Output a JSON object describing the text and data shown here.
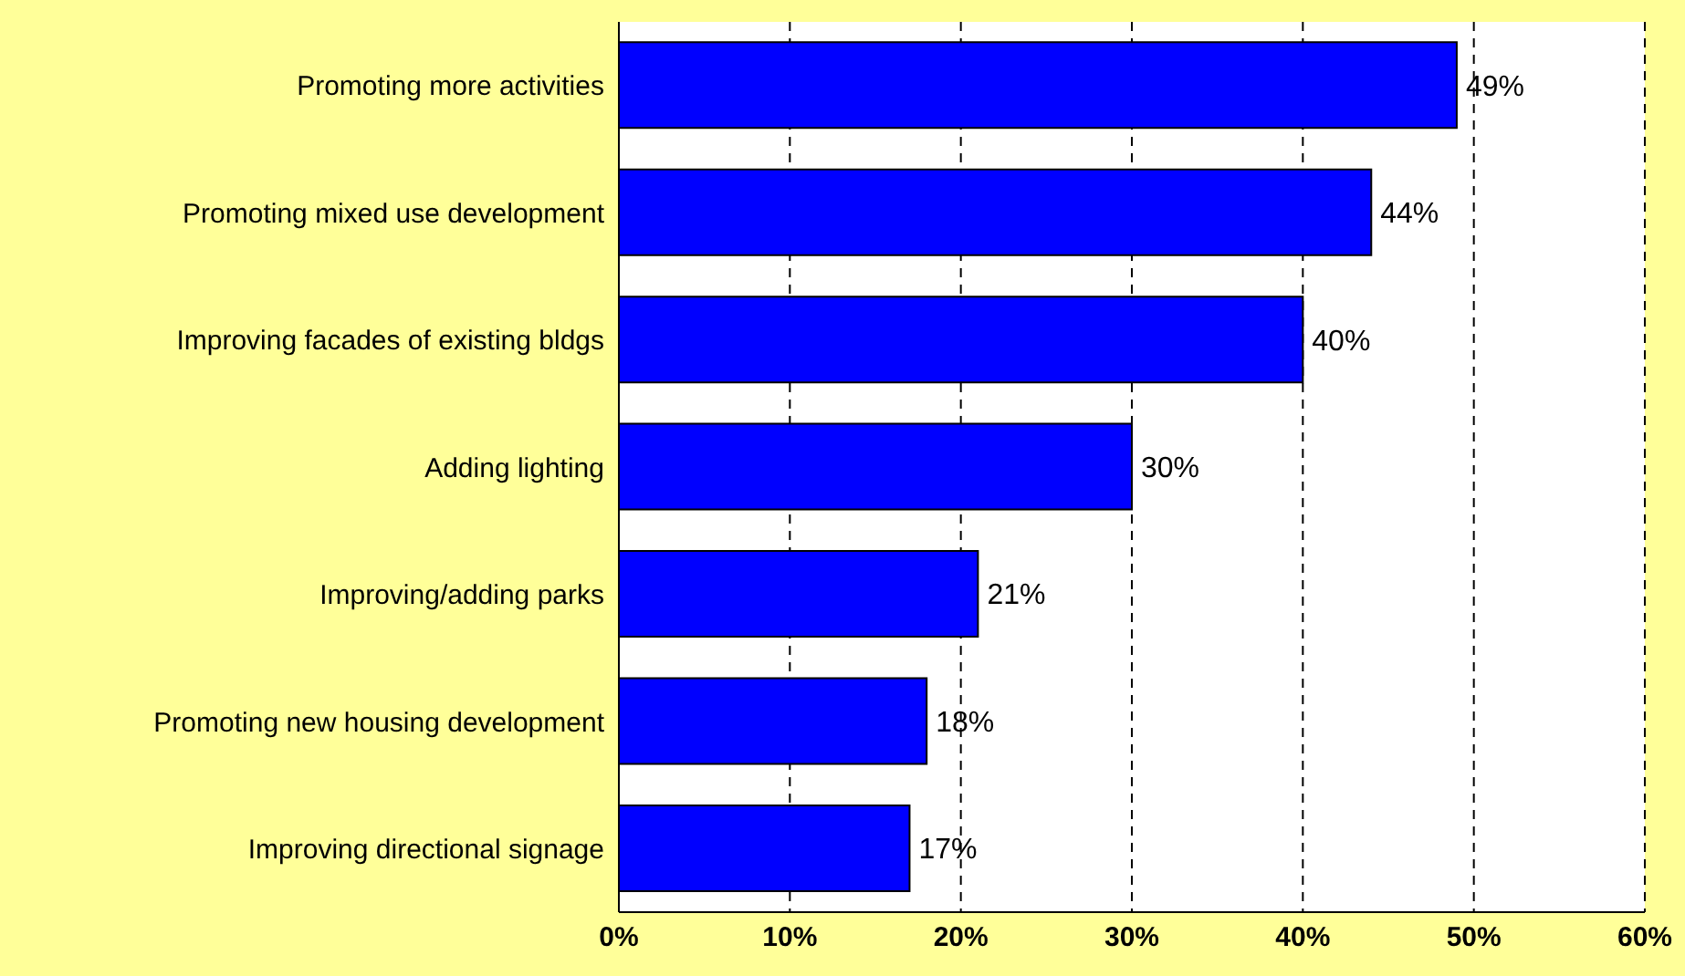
{
  "chart_data": {
    "type": "bar",
    "orientation": "horizontal",
    "categories": [
      "Promoting more activities",
      "Promoting mixed use development",
      "Improving facades of existing bldgs",
      "Adding lighting",
      "Improving/adding parks",
      "Promoting new housing development",
      "Improving directional signage"
    ],
    "values": [
      49,
      44,
      40,
      30,
      21,
      18,
      17
    ],
    "value_labels": [
      "49%",
      "44%",
      "40%",
      "30%",
      "21%",
      "18%",
      "17%"
    ],
    "color": "#0000ff",
    "xlim": [
      0,
      60
    ],
    "xticks": [
      {
        "value": 0,
        "label": "0%"
      },
      {
        "value": 10,
        "label": "10%"
      },
      {
        "value": 20,
        "label": "20%"
      },
      {
        "value": 30,
        "label": "30%"
      },
      {
        "value": 40,
        "label": "40%"
      },
      {
        "value": 50,
        "label": "50%"
      },
      {
        "value": 60,
        "label": "60%"
      }
    ],
    "grid": "x",
    "legend": false
  }
}
